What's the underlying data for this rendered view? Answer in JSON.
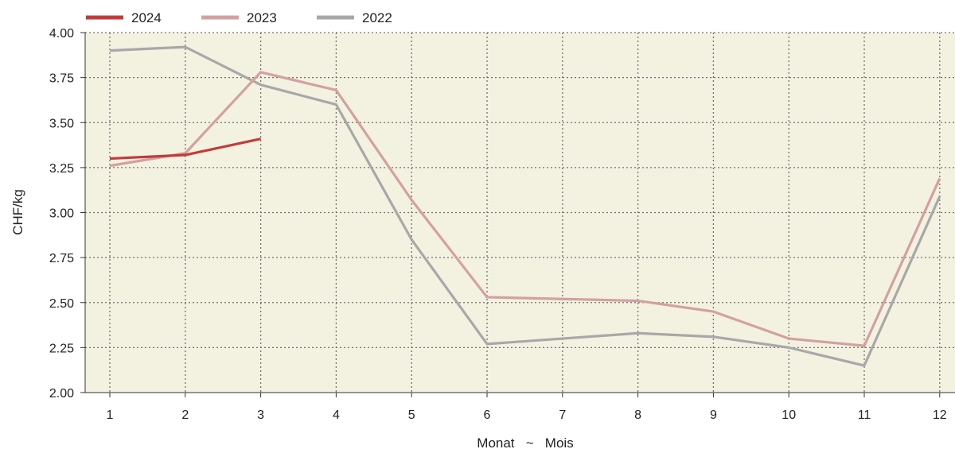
{
  "chart_data": {
    "type": "line",
    "title": "",
    "xlabel": "Monat   ~   Mois",
    "ylabel": "CHF/kg",
    "x": [
      1,
      2,
      3,
      4,
      5,
      6,
      7,
      8,
      9,
      10,
      11,
      12
    ],
    "ylim": [
      2.0,
      4.0
    ],
    "yticks": [
      "2.00",
      "2.25",
      "2.50",
      "2.75",
      "3.00",
      "3.25",
      "3.50",
      "3.75",
      "4.00"
    ],
    "grid": true,
    "legend_position": "top-left",
    "background_color": "#f3f2e1",
    "series": [
      {
        "name": "2024",
        "color": "#c23b3b",
        "values": [
          3.3,
          3.32,
          3.41,
          null,
          null,
          null,
          null,
          null,
          null,
          null,
          null,
          null
        ]
      },
      {
        "name": "2023",
        "color": "#d4a0a0",
        "values": [
          3.26,
          3.33,
          3.78,
          3.68,
          3.07,
          2.53,
          2.52,
          2.51,
          2.45,
          2.3,
          2.26,
          3.19
        ]
      },
      {
        "name": "2022",
        "color": "#a8a8a8",
        "values": [
          3.9,
          3.92,
          3.71,
          3.6,
          2.85,
          2.27,
          2.3,
          2.33,
          2.31,
          2.25,
          2.15,
          3.09
        ]
      }
    ]
  }
}
